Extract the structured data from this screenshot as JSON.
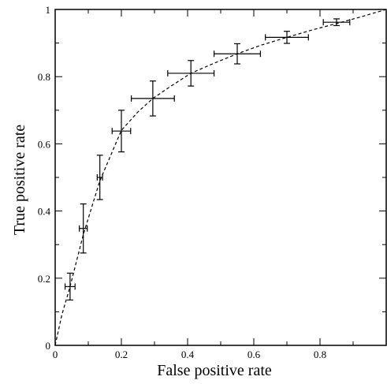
{
  "chart_data": {
    "type": "line",
    "title": "",
    "xlabel": "False positive rate",
    "ylabel": "True positive rate",
    "xlim": [
      0,
      1
    ],
    "ylim": [
      0,
      1
    ],
    "xticks": [
      0,
      0.2,
      0.4,
      0.6,
      0.8
    ],
    "xtick_labels": [
      "0",
      "0.2",
      "0.4",
      "0.6",
      "0.8"
    ],
    "yticks": [
      0,
      0.2,
      0.4,
      0.6,
      0.8,
      1
    ],
    "ytick_labels": [
      "0",
      "0.2",
      "0.4",
      "0.6",
      "0.8",
      "1"
    ],
    "grid": false,
    "series": [
      {
        "style": "errorbar",
        "color": "#000000",
        "points": [
          {
            "x": 0.045,
            "y": 0.175,
            "xerr": 0.015,
            "yerr": 0.04
          },
          {
            "x": 0.085,
            "y": 0.348,
            "xerr": 0.012,
            "yerr": 0.073
          },
          {
            "x": 0.135,
            "y": 0.5,
            "xerr": 0.008,
            "yerr": 0.066
          },
          {
            "x": 0.2,
            "y": 0.638,
            "xerr": 0.028,
            "yerr": 0.062
          },
          {
            "x": 0.295,
            "y": 0.735,
            "xerr": 0.065,
            "yerr": 0.052
          },
          {
            "x": 0.41,
            "y": 0.81,
            "xerr": 0.07,
            "yerr": 0.038
          },
          {
            "x": 0.55,
            "y": 0.868,
            "xerr": 0.07,
            "yerr": 0.03
          },
          {
            "x": 0.7,
            "y": 0.917,
            "xerr": 0.065,
            "yerr": 0.018
          },
          {
            "x": 0.85,
            "y": 0.962,
            "xerr": 0.04,
            "yerr": 0.01
          }
        ]
      },
      {
        "style": "dashed-line",
        "color": "#000000",
        "x": [
          0,
          0.02,
          0.045,
          0.085,
          0.135,
          0.2,
          0.25,
          0.295,
          0.35,
          0.41,
          0.48,
          0.55,
          0.62,
          0.7,
          0.78,
          0.85,
          0.92,
          1.0
        ],
        "y": [
          0,
          0.09,
          0.175,
          0.33,
          0.49,
          0.64,
          0.695,
          0.735,
          0.772,
          0.81,
          0.84,
          0.868,
          0.893,
          0.917,
          0.94,
          0.958,
          0.977,
          1.0
        ]
      }
    ]
  }
}
